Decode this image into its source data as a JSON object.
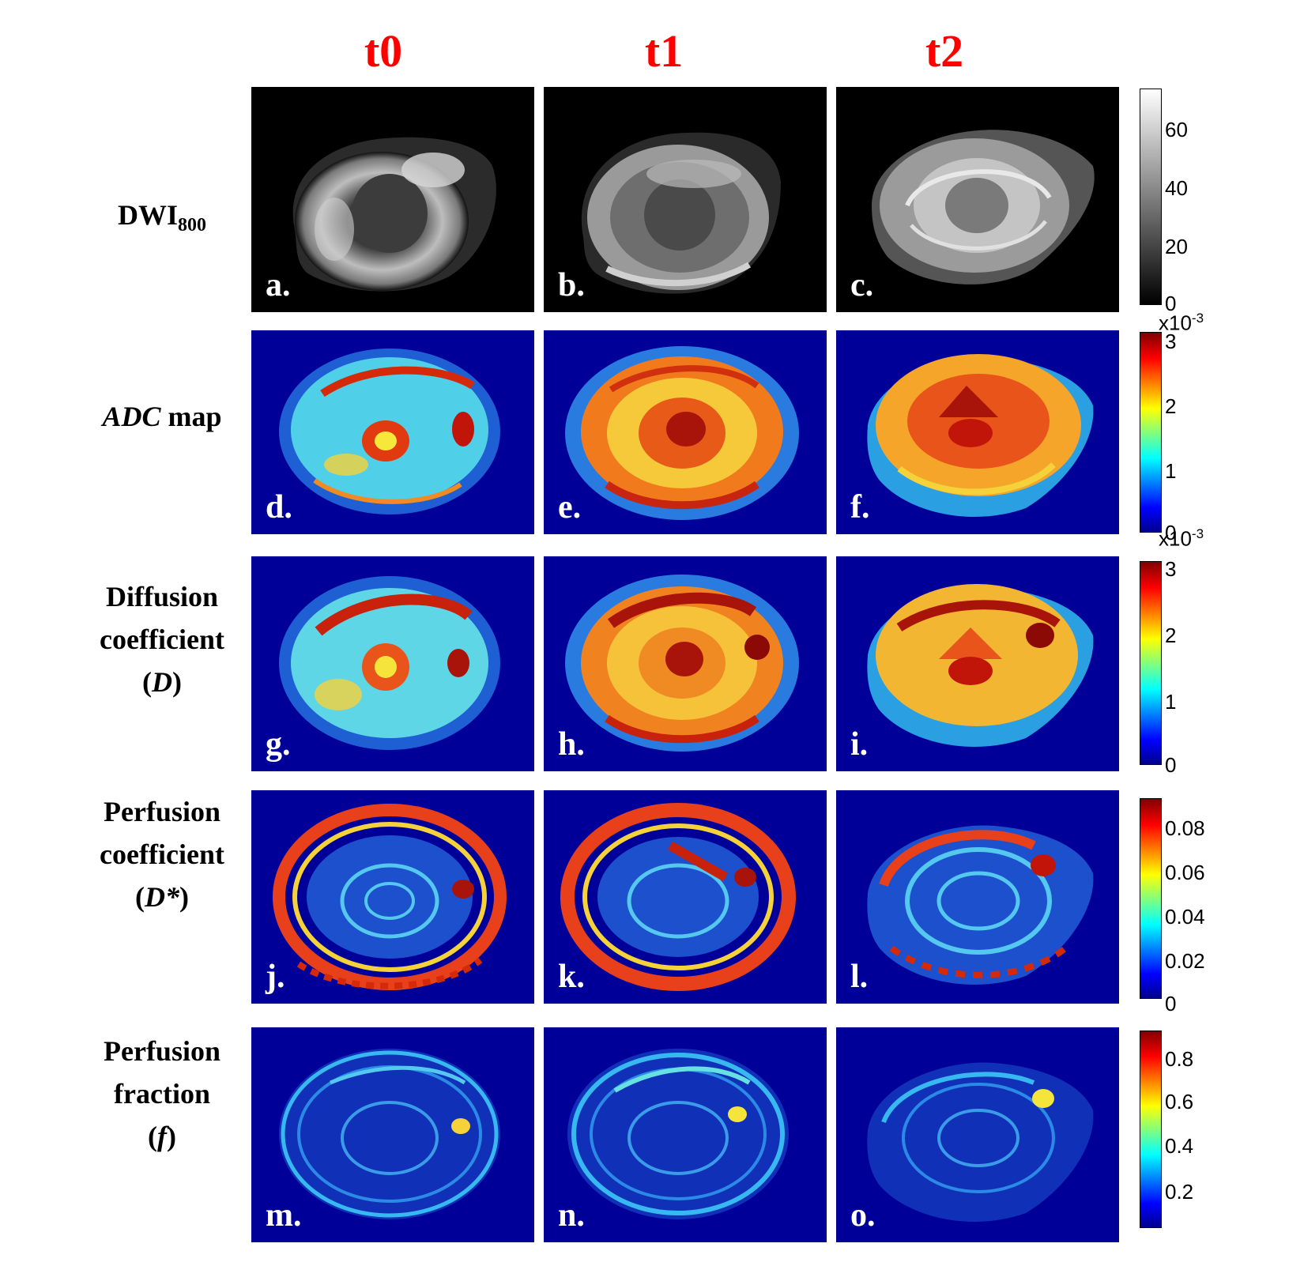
{
  "columns": [
    "t0",
    "t1",
    "t2"
  ],
  "rows": [
    {
      "label_parts": [
        {
          "text": "DWI",
          "italic": false
        }
      ],
      "label_sub": "800",
      "panels": [
        "a.",
        "b.",
        "c."
      ],
      "colormap": "gray",
      "colorbar": {
        "ticks": [
          "0",
          "20",
          "40",
          "60"
        ],
        "exponent": ""
      }
    },
    {
      "label_parts": [
        {
          "text": "ADC",
          "italic": true
        },
        {
          "text": " map",
          "italic": false
        }
      ],
      "panels": [
        "d.",
        "e.",
        "f."
      ],
      "colormap": "jet",
      "colorbar": {
        "ticks": [
          "0",
          "1",
          "2",
          "3"
        ],
        "exponent": "x10",
        "exponent_power": "-3"
      }
    },
    {
      "label_lines": [
        "Diffusion",
        "coefficient"
      ],
      "label_paren": "D",
      "panels": [
        "g.",
        "h.",
        "i."
      ],
      "colormap": "jet",
      "colorbar": {
        "ticks": [
          "0",
          "1",
          "2",
          "3"
        ],
        "exponent": "x10",
        "exponent_power": "-3"
      }
    },
    {
      "label_lines": [
        "Perfusion",
        "coefficient"
      ],
      "label_paren": "D*",
      "panels": [
        "j.",
        "k.",
        "l."
      ],
      "colormap": "jet",
      "colorbar": {
        "ticks": [
          "0",
          "0.02",
          "0.04",
          "0.06",
          "0.08"
        ],
        "exponent": ""
      }
    },
    {
      "label_lines": [
        "Perfusion",
        "fraction"
      ],
      "label_paren": "f",
      "panels": [
        "m.",
        "n.",
        "o."
      ],
      "colormap": "jet",
      "colorbar": {
        "ticks": [
          "0.2",
          "0.4",
          "0.6",
          "0.8"
        ],
        "exponent": ""
      }
    }
  ],
  "colors": {
    "column_header": "#ff0000",
    "map_background": "#000099",
    "dwi_background": "#000000",
    "panel_label": "#ffffff"
  }
}
